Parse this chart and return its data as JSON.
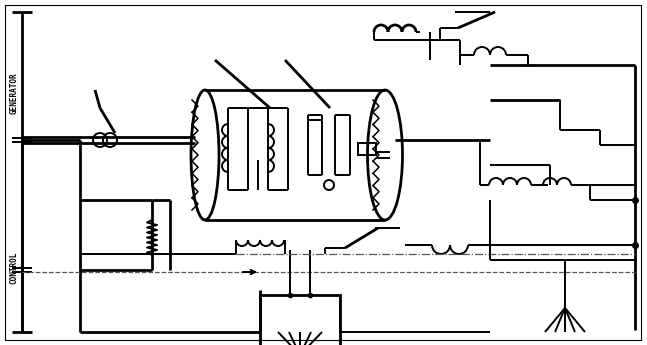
{
  "bg_color": "#ffffff",
  "line_color": "#000000",
  "lw": 1.4,
  "lw_thick": 2.0,
  "lw_medium": 1.8,
  "label_generator": "GENERATOR",
  "label_control": "CONTROL"
}
